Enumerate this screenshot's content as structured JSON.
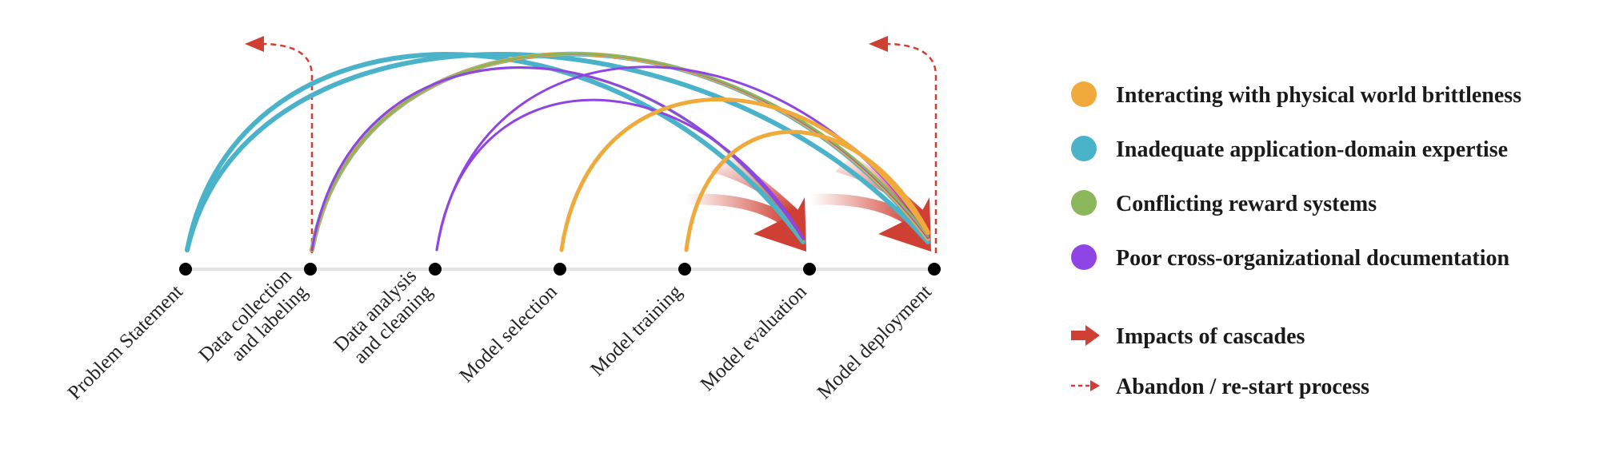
{
  "stages": [
    {
      "label": [
        "Problem Statement"
      ]
    },
    {
      "label": [
        "Data collection",
        "and labeling"
      ]
    },
    {
      "label": [
        "Data analysis",
        "and cleaning"
      ]
    },
    {
      "label": [
        "Model selection"
      ]
    },
    {
      "label": [
        "Model training"
      ]
    },
    {
      "label": [
        "Model evaluation"
      ]
    },
    {
      "label": [
        "Model deployment"
      ]
    }
  ],
  "categories": [
    {
      "key": "physical",
      "label": "Interacting with physical world brittleness",
      "color": "#f0aa3c"
    },
    {
      "key": "domain",
      "label": "Inadequate application-domain expertise",
      "color": "#4ab3c9"
    },
    {
      "key": "reward",
      "label": "Conflicting reward systems",
      "color": "#8cb65a"
    },
    {
      "key": "documentation",
      "label": "Poor cross-organizational documentation",
      "color": "#8f45e4"
    }
  ],
  "legend_markers": [
    {
      "key": "impact",
      "label": "Impacts of cascades",
      "color": "#cf3f33"
    },
    {
      "key": "abandon",
      "label": "Abandon / re-start process",
      "color": "#cf3f33"
    }
  ],
  "cascades": [
    {
      "category": "domain",
      "from": 0,
      "to": 6
    },
    {
      "category": "domain",
      "from": 0,
      "to": 5
    },
    {
      "category": "domain",
      "from": 1,
      "to": 6
    },
    {
      "category": "physical",
      "from": 1,
      "to": 6
    },
    {
      "category": "documentation",
      "from": 1,
      "to": 6
    },
    {
      "category": "reward",
      "from": 1,
      "to": 6
    },
    {
      "category": "reward",
      "from": 1,
      "to": 5
    },
    {
      "category": "documentation",
      "from": 1,
      "to": 5
    },
    {
      "category": "documentation",
      "from": 2,
      "to": 6
    },
    {
      "category": "documentation",
      "from": 2,
      "to": 5
    },
    {
      "category": "physical",
      "from": 3,
      "to": 6
    },
    {
      "category": "physical",
      "from": 4,
      "to": 6
    }
  ],
  "impact_targets": [
    5,
    6
  ],
  "restarts": [
    {
      "from": 1,
      "direction": "left"
    },
    {
      "from": 6,
      "direction": "left"
    }
  ]
}
